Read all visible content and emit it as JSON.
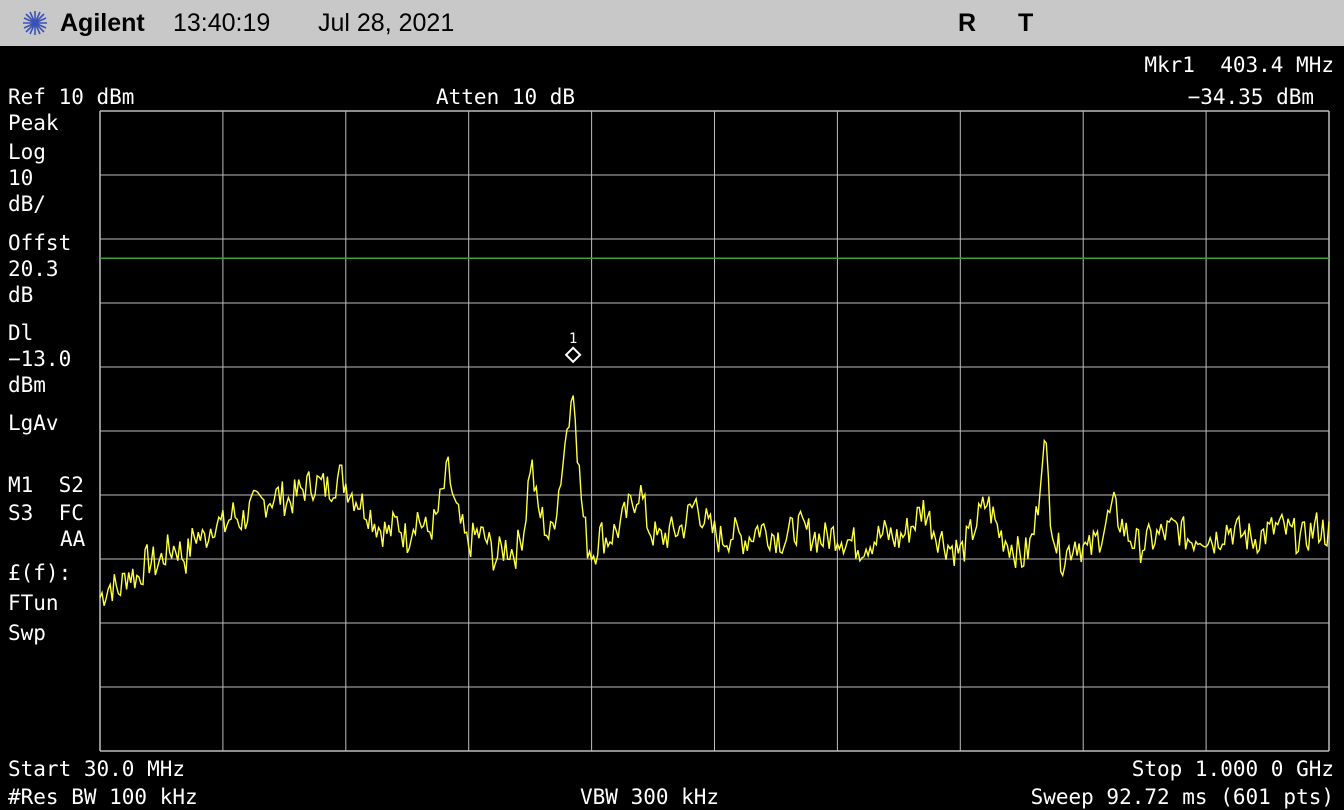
{
  "header": {
    "brand": "Agilent",
    "time": "13:40:19",
    "date": "Jul 28, 2021",
    "indicator_r": "R",
    "indicator_t": "T",
    "logo_icon": "agilent-spark-icon"
  },
  "marker_readout": {
    "line1": "Mkr1  403.4 MHz",
    "line2": "−34.35 dBm"
  },
  "top_labels": {
    "ref": "Ref 10 dBm",
    "atten": "Atten 10 dB"
  },
  "side_annotations": {
    "detector": "Peak",
    "scale_type": "Log",
    "scale_value": "10",
    "scale_unit": "dB/",
    "offset_label": "Offst",
    "offset_value": "20.3",
    "offset_unit": "dB",
    "dl_label": "Dl",
    "dl_value": "−13.0",
    "dl_unit": "dBm",
    "avg_type": "LgAv",
    "trig_line1": "M1  S2",
    "trig_line2": "S3  FC",
    "trig_line3": "AA",
    "func_label": "£(f):",
    "func_line1": "FTun",
    "func_line2": "Swp"
  },
  "bottom_labels": {
    "start": "Start 30.0 MHz",
    "stop": "Stop 1.000 0 GHz",
    "rbw": "#Res BW 100 kHz",
    "vbw": "VBW 300 kHz",
    "sweep": "Sweep 92.72 ms (601 pts)"
  },
  "colors": {
    "trace": "#ffff40",
    "display_line": "#3ca03c",
    "grid": "#bdbdbd",
    "background": "#000000",
    "header_bg": "#c8c8c8"
  },
  "chart_data": {
    "type": "line",
    "x_unit": "MHz",
    "y_unit": "dBm",
    "xlim": [
      30.0,
      1000.0
    ],
    "ylim": [
      -90,
      10
    ],
    "grid_divisions": {
      "x": 10,
      "y": 10
    },
    "grid": true,
    "display_line_dbm": -13.0,
    "marker": {
      "label": "1",
      "x": 403.4,
      "y": -34.35
    },
    "series": [
      {
        "x": [
          30,
          38,
          45,
          52,
          60,
          68,
          75,
          82,
          90,
          98,
          105,
          112,
          120,
          128,
          135,
          142,
          150,
          160,
          170,
          180,
          190,
          200,
          210,
          220,
          230,
          240,
          250,
          258,
          265,
          272,
          280,
          288,
          295,
          300,
          305,
          310,
          315,
          320,
          328,
          335,
          342,
          350,
          358,
          365,
          370,
          375,
          380,
          385,
          390,
          393,
          396,
          399,
          401,
          403.4,
          405,
          408,
          411,
          415,
          420,
          425,
          430,
          440,
          448,
          456,
          463,
          470,
          480,
          490,
          500,
          510,
          520,
          530,
          540,
          550,
          560,
          570,
          580,
          590,
          600,
          610,
          620,
          630,
          640,
          650,
          660,
          670,
          680,
          690,
          700,
          710,
          720,
          730,
          740,
          750,
          758,
          764,
          768,
          771,
          774,
          777,
          780,
          785,
          790,
          800,
          810,
          820,
          830,
          840,
          850,
          860,
          870,
          880,
          890,
          900,
          910,
          920,
          930,
          940,
          950,
          960,
          970,
          980,
          990,
          1000
        ],
        "y": [
          -66,
          -64,
          -65,
          -62,
          -63,
          -60,
          -61,
          -59,
          -58,
          -60,
          -56,
          -57,
          -54,
          -55,
          -53,
          -54,
          -52,
          -51,
          -50,
          -51,
          -49,
          -48,
          -49,
          -47,
          -50,
          -52,
          -55,
          -56,
          -54,
          -57,
          -53,
          -56,
          -54,
          -50,
          -46,
          -52,
          -55,
          -58,
          -56,
          -57,
          -60,
          -58,
          -59,
          -55,
          -44,
          -52,
          -54,
          -57,
          -52,
          -48,
          -44,
          -38,
          -36,
          -34.35,
          -38,
          -46,
          -53,
          -58,
          -59,
          -56,
          -57,
          -55,
          -52,
          -49,
          -55,
          -57,
          -56,
          -55,
          -51,
          -55,
          -57,
          -56,
          -57,
          -55,
          -56,
          -57,
          -55,
          -56,
          -57,
          -56,
          -57,
          -58,
          -57,
          -56,
          -57,
          -55,
          -52,
          -56,
          -58,
          -59,
          -55,
          -51,
          -56,
          -58,
          -60,
          -58,
          -55,
          -50,
          -42,
          -44,
          -52,
          -58,
          -60,
          -57,
          -59,
          -56,
          -52,
          -56,
          -58,
          -57,
          -56,
          -55,
          -57,
          -56,
          -57,
          -55,
          -56,
          -57,
          -56,
          -55,
          -56,
          -57,
          -55,
          -56
        ]
      }
    ]
  }
}
